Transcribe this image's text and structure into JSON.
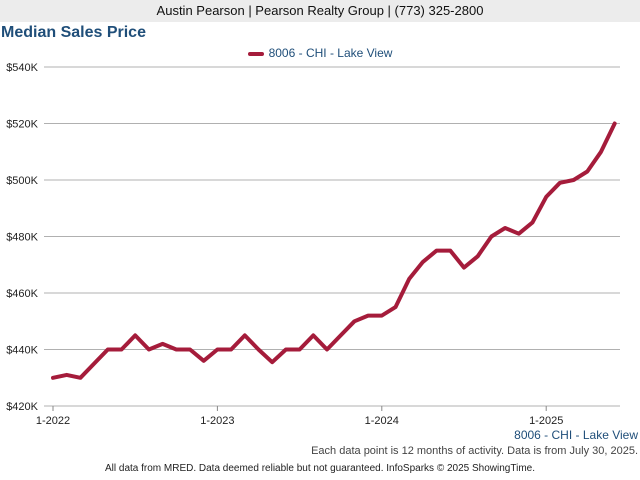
{
  "header": {
    "text": "Austin Pearson | Pearson Realty Group | (773) 325-2800"
  },
  "title": "Median Sales Price",
  "legend": {
    "label": "8006 - CHI - Lake View"
  },
  "series_label": "8006 - CHI - Lake View",
  "note": "Each data point is 12 months of activity. Data is from July 30, 2025.",
  "footer": "All data from MRED. Data deemed reliable but not guaranteed. InfoSparks © 2025 ShowingTime.",
  "colors": {
    "series": "#a51c3b",
    "grid": "#b0b0b0",
    "title": "#1f4e79"
  },
  "chart_data": {
    "type": "line",
    "title": "Median Sales Price",
    "xlabel": "",
    "ylabel": "",
    "ylim": [
      420000,
      540000
    ],
    "yticks": [
      420000,
      440000,
      460000,
      480000,
      500000,
      520000,
      540000
    ],
    "ytick_labels": [
      "$420K",
      "$440K",
      "$460K",
      "$480K",
      "$500K",
      "$520K",
      "$540K"
    ],
    "xtick_labels": [
      "1-2022",
      "1-2023",
      "1-2024",
      "1-2025"
    ],
    "grid": true,
    "legend_position": "top-center",
    "series": [
      {
        "name": "8006 - CHI - Lake View",
        "x": [
          "2022-01",
          "2022-02",
          "2022-03",
          "2022-04",
          "2022-05",
          "2022-06",
          "2022-07",
          "2022-08",
          "2022-09",
          "2022-10",
          "2022-11",
          "2022-12",
          "2023-01",
          "2023-02",
          "2023-03",
          "2023-04",
          "2023-05",
          "2023-06",
          "2023-07",
          "2023-08",
          "2023-09",
          "2023-10",
          "2023-11",
          "2023-12",
          "2024-01",
          "2024-02",
          "2024-03",
          "2024-04",
          "2024-05",
          "2024-06",
          "2024-07",
          "2024-08",
          "2024-09",
          "2024-10",
          "2024-11",
          "2024-12",
          "2025-01",
          "2025-02",
          "2025-03",
          "2025-04",
          "2025-05",
          "2025-06"
        ],
        "values": [
          430000,
          431000,
          430000,
          435000,
          440000,
          440000,
          445000,
          440000,
          442000,
          440000,
          440000,
          436000,
          440000,
          440000,
          445000,
          440000,
          435500,
          440000,
          440000,
          445000,
          440000,
          445000,
          450000,
          452000,
          452000,
          455000,
          465000,
          471000,
          475000,
          475000,
          469000,
          473000,
          480000,
          483000,
          481000,
          485000,
          494000,
          499000,
          500000,
          503000,
          510000,
          520000
        ]
      }
    ]
  }
}
